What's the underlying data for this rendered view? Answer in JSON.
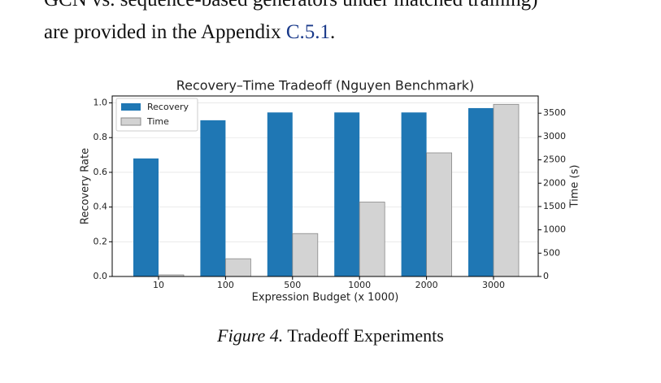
{
  "text": {
    "line1": "GCN vs. sequence-based generators under matched training)",
    "line2_start": "are provided in the Appendix ",
    "line2_link": "C.5.1",
    "line2_end": "."
  },
  "chart_data": {
    "type": "bar",
    "title": "Recovery–Time Tradeoff (Nguyen Benchmark)",
    "x_label": "Expression Budget (x 1000)",
    "y_label": "Recovery Rate",
    "y2_label": "Time (s)",
    "categories": [
      "10",
      "100",
      "500",
      "1000",
      "2000",
      "3000"
    ],
    "series": [
      {
        "name": "Recovery",
        "color": "#1f77b4",
        "values": [
          0.68,
          0.9,
          0.945,
          0.945,
          0.945,
          0.97
        ]
      },
      {
        "name": "Time",
        "color": "#d3d3d3",
        "axis": "y2",
        "values": [
          35,
          380,
          920,
          1595,
          2650,
          3690
        ]
      }
    ],
    "ylim": [
      0,
      1.04
    ],
    "yticks": [
      {
        "value": 0,
        "label": "0.0"
      },
      0.2,
      0.4,
      0.6,
      0.8,
      {
        "value": 1,
        "label": "1.0"
      }
    ],
    "y2lim": [
      0,
      3870
    ],
    "y2ticks": [
      0,
      500,
      1000,
      1500,
      2000,
      2500,
      3000,
      3500
    ],
    "grid": true,
    "legend": "upper left"
  },
  "caption": {
    "label": "Figure 4.",
    "text": "Tradeoff Experiments"
  }
}
